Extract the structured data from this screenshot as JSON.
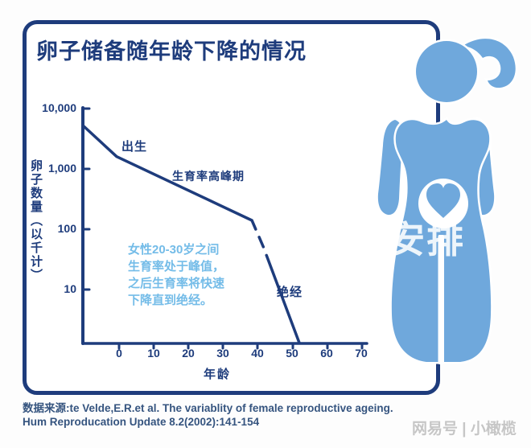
{
  "page": {
    "background": "#fdfdfd"
  },
  "card": {
    "title": "卵子储备随年龄下降的情况",
    "border_color": "#1e3c7c"
  },
  "chart_data": {
    "type": "line",
    "title": "卵子储备随年龄下降的情况",
    "xlabel": "年龄",
    "ylabel": "卵子数量（以千计）",
    "y_scale": "log",
    "ylim": [
      1,
      10000
    ],
    "xlim": [
      0,
      70
    ],
    "grid": false,
    "legend": "none",
    "line_color": "#1e3c7c",
    "y_tick_labels": [
      "10,000",
      "1,000",
      "100",
      "10"
    ],
    "y_tick_values": [
      10000,
      1000,
      100,
      10
    ],
    "x_tick_labels": [
      "0",
      "10",
      "20",
      "30",
      "40",
      "50",
      "60",
      "70"
    ],
    "series_description": "卵子数量随年龄呈对数下降：起点约5,000千（胎儿期峰值），出生时约1,600千，38岁左右降至约140千，其后快速下降，约51-52岁（绝经）降至接近0",
    "segments": [
      {
        "style": "solid",
        "points": [
          [
            -10.2,
            5100
          ],
          [
            -0.7,
            1600
          ],
          [
            38.3,
            140
          ],
          [
            39.4,
            100
          ]
        ]
      },
      {
        "style": "dash-fragment",
        "points": [
          [
            40.4,
            74
          ],
          [
            41.6,
            51
          ]
        ]
      },
      {
        "style": "solid",
        "points": [
          [
            42.5,
            37
          ],
          [
            52,
            1.3
          ]
        ]
      }
    ],
    "scale": {
      "x0": 68,
      "x_per_year": 4.31,
      "y0": 15,
      "y_per_decade": 75,
      "log_top": 4
    },
    "annotations": [
      {
        "text": "出生",
        "x": 1,
        "y": 2000
      },
      {
        "text": "生育率高峰期",
        "x": 16,
        "y": 600
      },
      {
        "text": "绝经",
        "x": 46,
        "y": 14
      },
      {
        "text": "女性20-30岁之间\n生育率处于峰值，\n之后生育率将快速\n下降直到绝经。",
        "x": 3,
        "y": 30
      }
    ]
  },
  "figure": {
    "name": "pregnant-woman-silhouette",
    "color": "#6fa8dc",
    "heart_color": "#6fa8dc"
  },
  "source": {
    "text": "数据来源:te Velde,E.R.et al. The variablity of female reproductive ageing.\nHum Reproducation Update 8.2(2002):141-154"
  },
  "watermarks": {
    "overlay": "安排",
    "publisher": "网易号 | 小橄榄"
  }
}
